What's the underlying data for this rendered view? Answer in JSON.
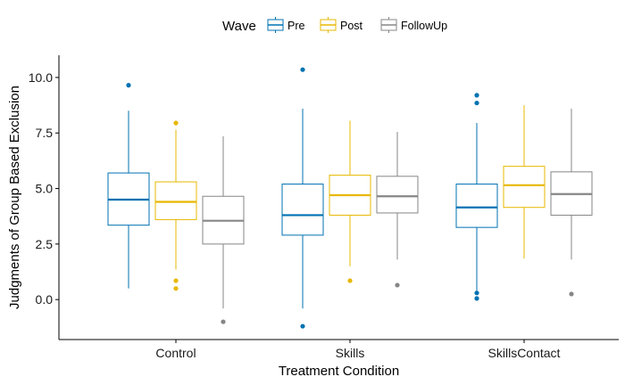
{
  "chart_data": {
    "type": "boxplot",
    "xlabel": "Treatment Condition",
    "ylabel": "Judgments of Group Based Exclusion",
    "categories": [
      "Control",
      "Skills",
      "SkillsContact"
    ],
    "ylim": [
      -1.8,
      11.0
    ],
    "yticks": [
      0.0,
      2.5,
      5.0,
      7.5,
      10.0
    ],
    "ytick_labels": [
      "0.0",
      "2.5",
      "5.0",
      "7.5",
      "10.0"
    ],
    "legend": {
      "title": "Wave",
      "position": "top",
      "entries": [
        "Pre",
        "Post",
        "FollowUp"
      ]
    },
    "grid": false,
    "series": [
      {
        "name": "Pre",
        "color": "#0072B2",
        "boxes": [
          {
            "q1": 3.35,
            "median": 4.5,
            "q3": 5.7,
            "whisker_low": 0.5,
            "whisker_high": 8.5,
            "outliers": [
              9.65
            ]
          },
          {
            "q1": 2.9,
            "median": 3.8,
            "q3": 5.2,
            "whisker_low": -0.4,
            "whisker_high": 8.6,
            "outliers": [
              10.35,
              -1.2
            ]
          },
          {
            "q1": 3.25,
            "median": 4.15,
            "q3": 5.2,
            "whisker_low": 0.4,
            "whisker_high": 7.95,
            "outliers": [
              9.2,
              8.85,
              0.3,
              0.05
            ]
          }
        ]
      },
      {
        "name": "Post",
        "color": "#E7B800",
        "boxes": [
          {
            "q1": 3.6,
            "median": 4.4,
            "q3": 5.3,
            "whisker_low": 1.35,
            "whisker_high": 7.65,
            "outliers": [
              7.95,
              0.85,
              0.5
            ]
          },
          {
            "q1": 3.8,
            "median": 4.7,
            "q3": 5.6,
            "whisker_low": 1.5,
            "whisker_high": 8.05,
            "outliers": [
              0.85
            ]
          },
          {
            "q1": 4.15,
            "median": 5.15,
            "q3": 6.0,
            "whisker_low": 1.85,
            "whisker_high": 8.75,
            "outliers": []
          }
        ]
      },
      {
        "name": "FollowUp",
        "color": "#868686",
        "boxes": [
          {
            "q1": 2.5,
            "median": 3.55,
            "q3": 4.65,
            "whisker_low": -0.4,
            "whisker_high": 7.35,
            "outliers": [
              -1.0
            ]
          },
          {
            "q1": 3.9,
            "median": 4.65,
            "q3": 5.55,
            "whisker_low": 1.8,
            "whisker_high": 7.55,
            "outliers": [
              0.65
            ]
          },
          {
            "q1": 3.8,
            "median": 4.75,
            "q3": 5.75,
            "whisker_low": 1.8,
            "whisker_high": 8.6,
            "outliers": [
              0.25
            ]
          }
        ]
      }
    ]
  }
}
